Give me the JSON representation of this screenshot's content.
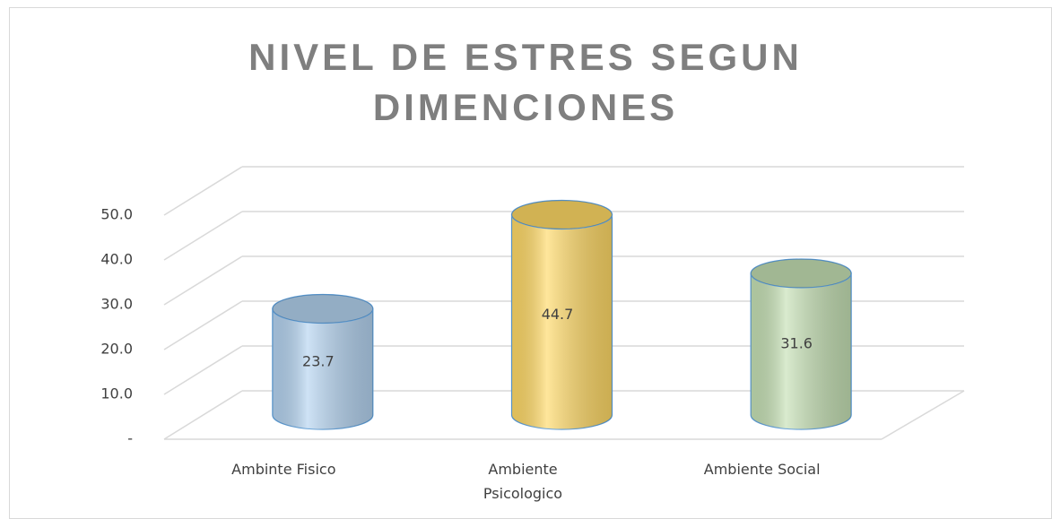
{
  "chart_data": {
    "type": "bar3d-cylinder",
    "title": "NIVEL DE ESTRES SEGUN DIMENCIONES",
    "categories": [
      "Ambinte Fisico",
      "Ambiente Psicologico",
      "Ambiente Social"
    ],
    "values": [
      23.7,
      44.7,
      31.6
    ],
    "colors": [
      "#b4d3f0",
      "#ffd966",
      "#c5e0b4"
    ],
    "ylim": [
      0,
      50
    ],
    "yticks": [
      {
        "value": 0,
        "label": "-"
      },
      {
        "value": 10,
        "label": "10.0"
      },
      {
        "value": 20,
        "label": "20.0"
      },
      {
        "value": 30,
        "label": "30.0"
      },
      {
        "value": 40,
        "label": "40.0"
      },
      {
        "value": 50,
        "label": "50.0"
      }
    ],
    "grid": true
  }
}
